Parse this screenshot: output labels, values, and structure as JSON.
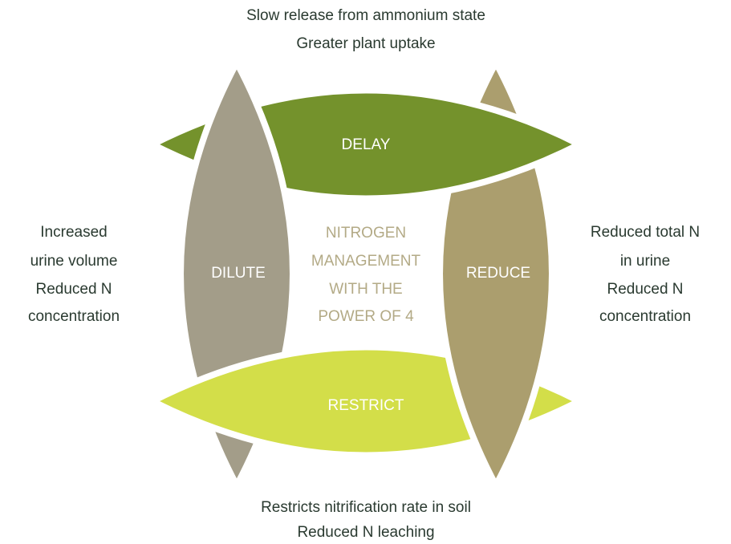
{
  "top": {
    "lines": [
      "Slow release from ammonium state",
      "Greater plant uptake"
    ]
  },
  "left": {
    "lines": [
      "Increased",
      "urine volume",
      "Reduced N",
      "concentration"
    ]
  },
  "right": {
    "lines": [
      "Reduced total N",
      "in urine",
      "Reduced N",
      "concentration"
    ]
  },
  "bottom": {
    "lines": [
      "Restricts nitrification rate in soil",
      "Reduced N leaching"
    ]
  },
  "center": {
    "lines": [
      "NITROGEN",
      "MANAGEMENT",
      "WITH THE",
      "POWER OF 4"
    ]
  },
  "leaves": {
    "delay": "DELAY",
    "dilute": "DILUTE",
    "reduce": "REDUCE",
    "restrict": "RESTRICT"
  }
}
